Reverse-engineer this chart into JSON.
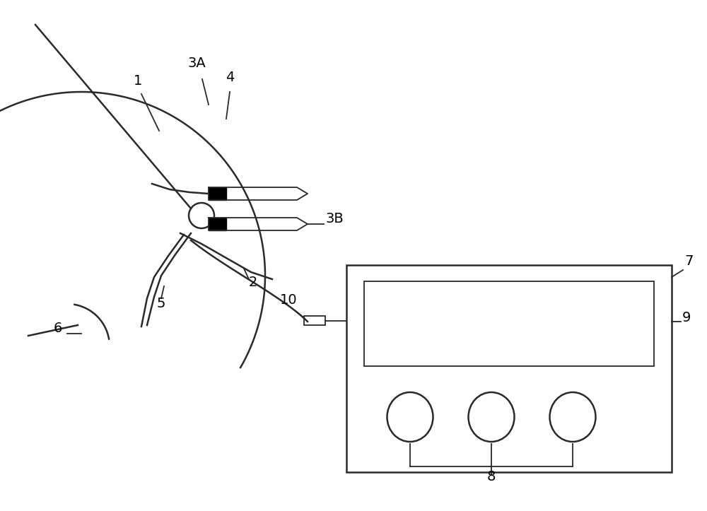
{
  "bg_color": "#ffffff",
  "line_color": "#2a2a2a",
  "black_color": "#000000",
  "fig_width": 10.0,
  "fig_height": 7.23,
  "dpi": 100
}
